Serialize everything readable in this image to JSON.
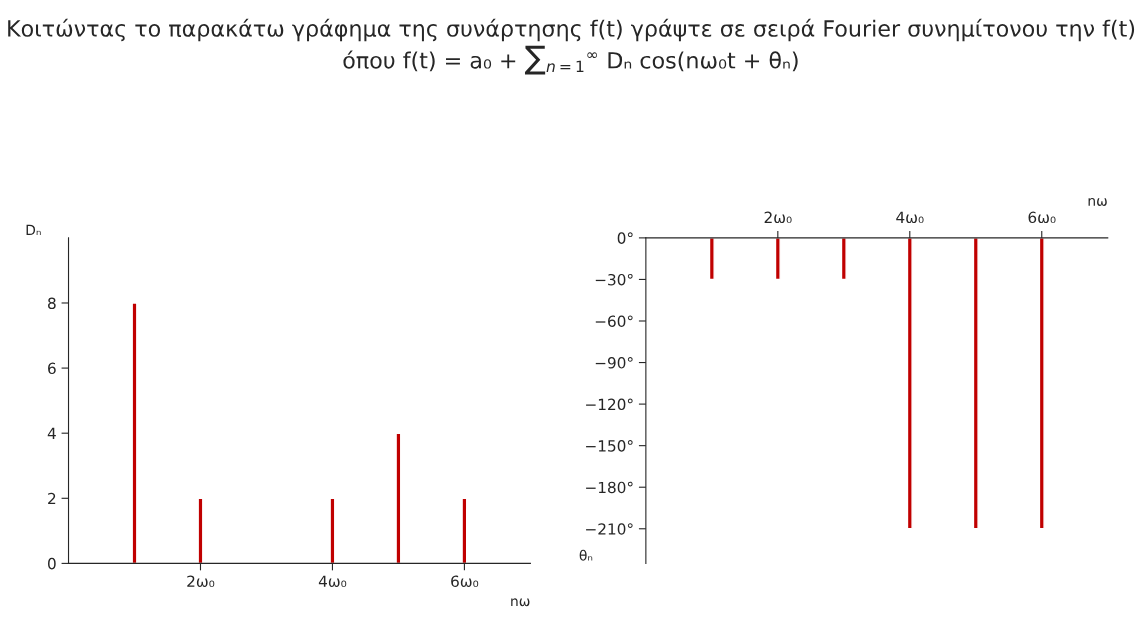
{
  "chart_data": [
    {
      "type": "bar",
      "title": "Κοιτώντας το παρακάτω γράφημα της συνάρτησης f(t) γράψτε σε σειρά Fourier συνημίτονου την f(t) όπου f(t) = a₀ + ∑$_{n=1}$$^{∞}$ Dₙ cos(nω₀t + θₙ)",
      "x": [
        1,
        2,
        3,
        4,
        5,
        6
      ],
      "values": [
        8,
        2,
        null,
        2,
        4,
        2
      ],
      "color": "#c00000",
      "xlim": [
        0,
        7
      ],
      "xticks": [
        {
          "value": 2,
          "label": "2ω₀"
        },
        {
          "value": 4,
          "label": "4ω₀"
        },
        {
          "value": 6,
          "label": "6ω₀"
        }
      ],
      "ylim": [
        0,
        10
      ],
      "yticks": [
        0,
        2,
        4,
        6,
        8
      ],
      "xlabel": "nω",
      "ylabel": "Dₙ",
      "grid": false
    },
    {
      "type": "bar",
      "x": [
        1,
        2,
        3,
        4,
        5,
        6
      ],
      "values": [
        -30,
        -30,
        -30,
        -210,
        -210,
        -210
      ],
      "color": "#c00000",
      "xlim": [
        0,
        7
      ],
      "xticks": [
        {
          "value": 2,
          "label": "2ω₀"
        },
        {
          "value": 4,
          "label": "4ω₀"
        },
        {
          "value": 6,
          "label": "6ω₀"
        }
      ],
      "ylim": [
        -235,
        0
      ],
      "yticks": [
        {
          "value": 0,
          "label": "0°"
        },
        {
          "value": -30,
          "label": "−30°"
        },
        {
          "value": -60,
          "label": "−60°"
        },
        {
          "value": -90,
          "label": "−90°"
        },
        {
          "value": -120,
          "label": "−120°"
        },
        {
          "value": -150,
          "label": "−150°"
        },
        {
          "value": -180,
          "label": "−180°"
        },
        {
          "value": -210,
          "label": "−210°"
        }
      ],
      "xlabel": "nω",
      "ylabel": "θₙ",
      "grid": false
    }
  ]
}
